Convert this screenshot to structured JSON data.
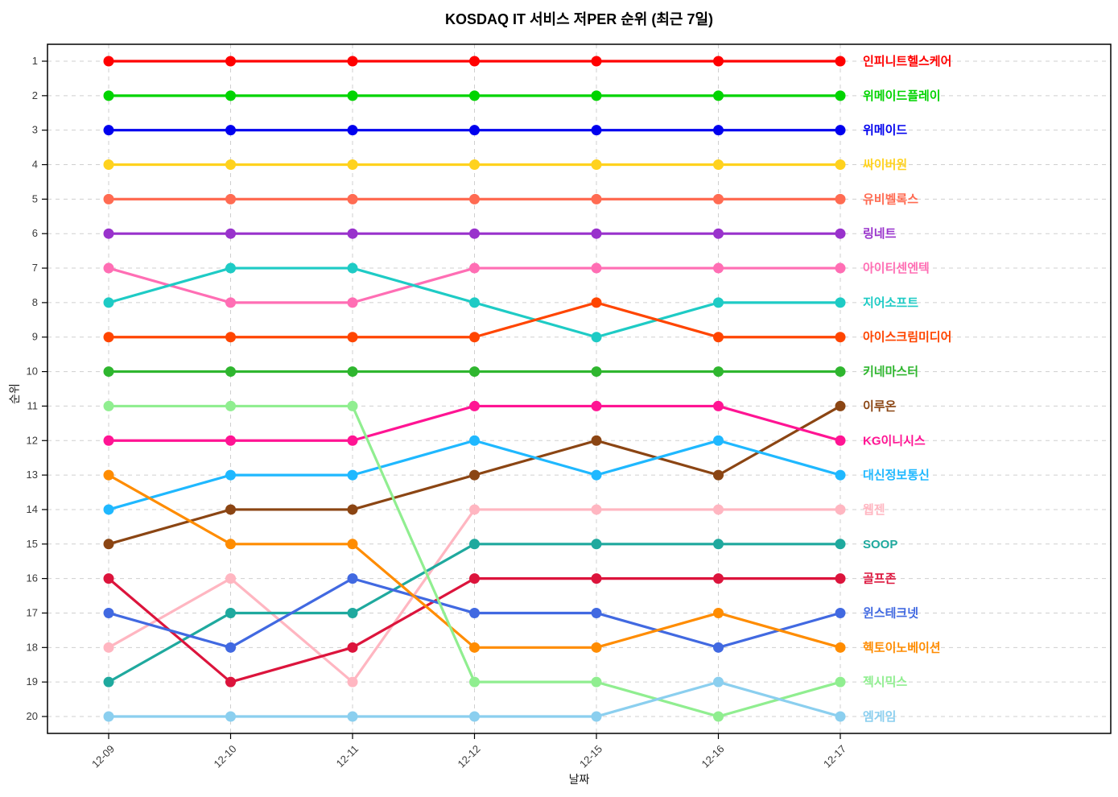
{
  "chart_data": {
    "type": "line",
    "variant": "bump-rank-chart",
    "title": "KOSDAQ IT 서비스 저PER 순위 (최근 7일)",
    "xlabel": "날짜",
    "ylabel": "순위",
    "x": [
      "12-09",
      "12-10",
      "12-11",
      "12-12",
      "12-15",
      "12-16",
      "12-17"
    ],
    "y_ticks": [
      1,
      2,
      3,
      4,
      5,
      6,
      7,
      8,
      9,
      10,
      11,
      12,
      13,
      14,
      15,
      16,
      17,
      18,
      19,
      20
    ],
    "y_axis": {
      "min": 1,
      "max": 20,
      "inverted": true
    },
    "grid": true,
    "grid_style": "dashed",
    "legend_position": "right-inline-at-last-value",
    "series": [
      {
        "name": "인피니트헬스케어",
        "color": "#FF0000",
        "values": [
          1,
          1,
          1,
          1,
          1,
          1,
          1
        ]
      },
      {
        "name": "위메이드플레이",
        "color": "#00D400",
        "values": [
          2,
          2,
          2,
          2,
          2,
          2,
          2
        ]
      },
      {
        "name": "위메이드",
        "color": "#0000EE",
        "values": [
          3,
          3,
          3,
          3,
          3,
          3,
          3
        ]
      },
      {
        "name": "싸이버원",
        "color": "#FFD21E",
        "values": [
          4,
          4,
          4,
          4,
          4,
          4,
          4
        ]
      },
      {
        "name": "유비벨록스",
        "color": "#FF6B52",
        "values": [
          5,
          5,
          5,
          5,
          5,
          5,
          5
        ]
      },
      {
        "name": "링네트",
        "color": "#9932CC",
        "values": [
          6,
          6,
          6,
          6,
          6,
          6,
          6
        ]
      },
      {
        "name": "아이티센엔텍",
        "color": "#FF6EB4",
        "values": [
          7,
          8,
          8,
          7,
          7,
          7,
          7
        ]
      },
      {
        "name": "지어소프트",
        "color": "#1ECBC5",
        "values": [
          8,
          7,
          7,
          8,
          9,
          8,
          8
        ]
      },
      {
        "name": "아이스크림미디어",
        "color": "#FF4500",
        "values": [
          9,
          9,
          9,
          9,
          8,
          9,
          9
        ]
      },
      {
        "name": "키네마스터",
        "color": "#2FB62F",
        "values": [
          10,
          10,
          10,
          10,
          10,
          10,
          10
        ]
      },
      {
        "name": "이루온",
        "color": "#8B4513",
        "values": [
          15,
          14,
          14,
          13,
          12,
          13,
          11
        ]
      },
      {
        "name": "KG이니시스",
        "color": "#FF1493",
        "values": [
          12,
          12,
          12,
          11,
          11,
          11,
          12
        ]
      },
      {
        "name": "대신정보통신",
        "color": "#1FB8FF",
        "values": [
          14,
          13,
          13,
          12,
          13,
          12,
          13
        ]
      },
      {
        "name": "웹젠",
        "color": "#FFB6C1",
        "values": [
          18,
          16,
          19,
          14,
          14,
          14,
          14
        ]
      },
      {
        "name": "SOOP",
        "color": "#1FA99E",
        "values": [
          19,
          17,
          17,
          15,
          15,
          15,
          15
        ]
      },
      {
        "name": "골프존",
        "color": "#DC143C",
        "values": [
          16,
          19,
          18,
          16,
          16,
          16,
          16
        ]
      },
      {
        "name": "윈스테크넷",
        "color": "#4169E1",
        "values": [
          17,
          18,
          16,
          17,
          17,
          18,
          17
        ]
      },
      {
        "name": "헥토이노베이션",
        "color": "#FF8C00",
        "values": [
          13,
          15,
          15,
          18,
          18,
          17,
          18
        ]
      },
      {
        "name": "젝시믹스",
        "color": "#90EE90",
        "values": [
          11,
          11,
          11,
          19,
          19,
          20,
          19
        ]
      },
      {
        "name": "엠게임",
        "color": "#8BCFEF",
        "values": [
          20,
          20,
          20,
          20,
          20,
          19,
          20
        ]
      }
    ]
  }
}
